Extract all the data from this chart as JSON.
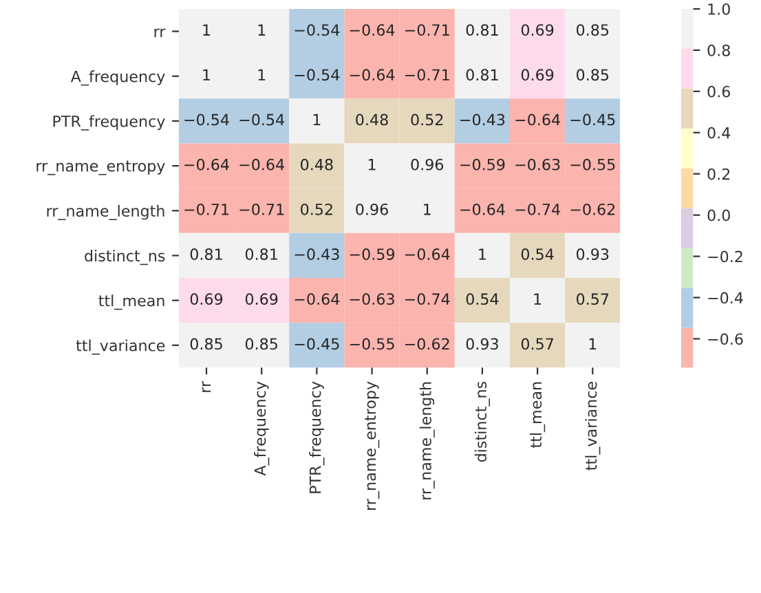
{
  "chart_data": {
    "type": "heatmap",
    "categories": [
      "rr",
      "A_frequency",
      "PTR_frequency",
      "rr_name_entropy",
      "rr_name_length",
      "distinct_ns",
      "ttl_mean",
      "ttl_variance"
    ],
    "y_categories": [
      "rr",
      "A_frequency",
      "PTR_frequency",
      "rr_name_entropy",
      "rr_name_length",
      "distinct_ns",
      "ttl_mean",
      "ttl_variance"
    ],
    "cells": [
      [
        1,
        1,
        -0.54,
        -0.64,
        -0.71,
        0.81,
        0.69,
        0.85
      ],
      [
        1,
        1,
        -0.54,
        -0.64,
        -0.71,
        0.81,
        0.69,
        0.85
      ],
      [
        -0.54,
        -0.54,
        1,
        0.48,
        0.52,
        -0.43,
        -0.64,
        -0.45
      ],
      [
        -0.64,
        -0.64,
        0.48,
        1,
        0.96,
        -0.59,
        -0.63,
        -0.55
      ],
      [
        -0.71,
        -0.71,
        0.52,
        0.96,
        1,
        -0.64,
        -0.74,
        -0.62
      ],
      [
        0.81,
        0.81,
        -0.43,
        -0.59,
        -0.64,
        1,
        0.54,
        0.93
      ],
      [
        0.69,
        0.69,
        -0.64,
        -0.63,
        -0.74,
        0.54,
        1,
        0.57
      ],
      [
        0.85,
        0.85,
        -0.45,
        -0.55,
        -0.62,
        0.93,
        0.57,
        1
      ]
    ],
    "data_labels": true,
    "clim": [
      -0.74,
      1.0
    ],
    "cticks": [
      {
        "value": -0.6,
        "label": "−0.6"
      },
      {
        "value": -0.4,
        "label": "−0.4"
      },
      {
        "value": -0.2,
        "label": "−0.2"
      },
      {
        "value": 0.0,
        "label": "0.0"
      },
      {
        "value": 0.2,
        "label": "0.2"
      },
      {
        "value": 0.4,
        "label": "0.4"
      },
      {
        "value": 0.6,
        "label": "0.6"
      },
      {
        "value": 0.8,
        "label": "0.8"
      },
      {
        "value": 1.0,
        "label": "1.0"
      }
    ]
  }
}
